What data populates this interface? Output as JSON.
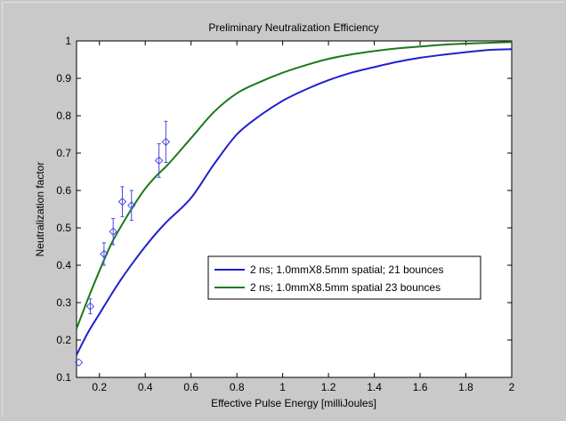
{
  "chart_data": {
    "type": "line",
    "title": "Preliminary Neutralization Efficiency",
    "xlabel": "Effective Pulse Energy [milliJoules]",
    "ylabel": "Neutralization factor",
    "xlim": [
      0.1,
      2.0
    ],
    "ylim": [
      0.1,
      1.0
    ],
    "x_ticks": [
      0.2,
      0.4,
      0.6,
      0.8,
      1,
      1.2,
      1.4,
      1.6,
      1.8,
      2
    ],
    "x_tick_labels": [
      "0.2",
      "0.4",
      "0.6",
      "0.8",
      "1",
      "1.2",
      "1.4",
      "1.6",
      "1.8",
      "2"
    ],
    "y_ticks": [
      0.1,
      0.2,
      0.3,
      0.4,
      0.5,
      0.6,
      0.7,
      0.8,
      0.9,
      1
    ],
    "y_tick_labels": [
      "0.1",
      "0.2",
      "0.3",
      "0.4",
      "0.5",
      "0.6",
      "0.7",
      "0.8",
      "0.9",
      "1"
    ],
    "grid": false,
    "legend_position": "center-right",
    "series": [
      {
        "name": "2 ns; 1.0mmX8.5mm spatial; 21 bounces",
        "color": "#1f1fd0",
        "x": [
          0.1,
          0.15,
          0.2,
          0.25,
          0.3,
          0.35,
          0.4,
          0.45,
          0.5,
          0.6,
          0.7,
          0.8,
          0.9,
          1.0,
          1.1,
          1.2,
          1.3,
          1.4,
          1.5,
          1.6,
          1.7,
          1.8,
          1.9,
          2.0
        ],
        "y": [
          0.16,
          0.22,
          0.27,
          0.32,
          0.367,
          0.41,
          0.45,
          0.487,
          0.52,
          0.58,
          0.67,
          0.75,
          0.8,
          0.84,
          0.87,
          0.895,
          0.915,
          0.93,
          0.944,
          0.955,
          0.963,
          0.97,
          0.976,
          0.978
        ]
      },
      {
        "name": "2 ns; 1.0mmX8.5mm spatial 23 bounces",
        "color": "#1a7a1a",
        "x": [
          0.1,
          0.15,
          0.2,
          0.25,
          0.3,
          0.35,
          0.4,
          0.45,
          0.5,
          0.6,
          0.7,
          0.8,
          0.9,
          1.0,
          1.1,
          1.2,
          1.3,
          1.4,
          1.5,
          1.6,
          1.7,
          1.8,
          1.9,
          2.0
        ],
        "y": [
          0.23,
          0.31,
          0.385,
          0.455,
          0.51,
          0.56,
          0.605,
          0.64,
          0.67,
          0.74,
          0.81,
          0.86,
          0.89,
          0.915,
          0.935,
          0.952,
          0.964,
          0.973,
          0.98,
          0.985,
          0.99,
          0.993,
          0.995,
          0.997
        ]
      }
    ],
    "data_points": {
      "color": "#4a4ae0",
      "x": [
        0.11,
        0.16,
        0.22,
        0.26,
        0.3,
        0.34,
        0.46,
        0.49
      ],
      "y": [
        0.14,
        0.29,
        0.43,
        0.49,
        0.57,
        0.56,
        0.68,
        0.73
      ],
      "err": [
        0.0,
        0.02,
        0.03,
        0.035,
        0.04,
        0.04,
        0.045,
        0.055
      ]
    }
  }
}
